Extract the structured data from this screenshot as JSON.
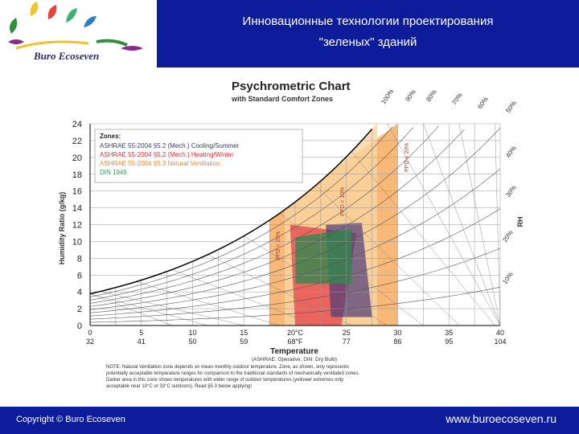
{
  "header": {
    "title_line1": "Инновационные технологии проектирования",
    "title_line2": "\"зеленых\" зданий",
    "logo_text": "Buro Ecoseven",
    "band_color": "#0d1c9a"
  },
  "footer": {
    "copyright": "Copyright © Buro Ecoseven",
    "website": "www.buroecoseven.ru"
  },
  "chart_data": {
    "type": "line",
    "title": "Psychrometric Chart",
    "subtitle": "with Standard Comfort Zones",
    "xlabel": "Temperature",
    "xlabel_note": "(ASHRAE: Operative, DIN: Dry Bulb)",
    "ylabel": "Humidity Ratio (g/kg)",
    "rh_label": "RH",
    "xlim": [
      0,
      40
    ],
    "ylim": [
      0,
      24
    ],
    "y_ticks": [
      0,
      2,
      4,
      6,
      8,
      10,
      12,
      14,
      16,
      18,
      20,
      22,
      24
    ],
    "x_ticks_c": [
      "0",
      "5",
      "10",
      "15",
      "20°C",
      "25",
      "30",
      "35",
      "40"
    ],
    "x_ticks_f": [
      "32",
      "41",
      "50",
      "59",
      "68°F",
      "77",
      "86",
      "95",
      "104"
    ],
    "x_tick_values": [
      0,
      5,
      10,
      15,
      20,
      25,
      30,
      35,
      40
    ],
    "rh_curves": [
      10,
      20,
      30,
      40,
      50,
      60,
      70,
      80,
      90,
      100
    ],
    "rh_labels": [
      "10%",
      "20%",
      "30%",
      "40%",
      "50%",
      "60%",
      "70%",
      "80%",
      "90%",
      "100%"
    ],
    "ppd_labels": [
      "PPD = 20%",
      "PPD = 10%",
      "PPD = 20%"
    ],
    "legend": {
      "heading": "Zones:",
      "position": "top-left",
      "entries": [
        {
          "label": "ASHRAE 55-2004 §5.2 (Mech.) Cooling/Summer",
          "color": "#3a3a6a"
        },
        {
          "label": "ASHRAE 55-2004 §5.2 (Mech.) Heating/Winter",
          "color": "#e0303a"
        },
        {
          "label": "ASHRAE 55-2004 §5.3 Natural Ventilation",
          "color": "#f08a30"
        },
        {
          "label": "DIN 1946",
          "color": "#2e9a5a"
        }
      ]
    },
    "zones": [
      {
        "name": "Natural Ventilation",
        "color": "#f5a04a",
        "polygon": [
          [
            17.5,
            0
          ],
          [
            30,
            0
          ],
          [
            30,
            24
          ],
          [
            17.5,
            13
          ]
        ]
      },
      {
        "name": "Natural Ventilation light",
        "color": "#fbd5a0",
        "polygon": [
          [
            19,
            0
          ],
          [
            28,
            0
          ],
          [
            28,
            24
          ],
          [
            19,
            14
          ]
        ]
      },
      {
        "name": "Heating/Winter",
        "color": "#e8404a",
        "polygon": [
          [
            20,
            0
          ],
          [
            24.5,
            0
          ],
          [
            26,
            11
          ],
          [
            19.5,
            12
          ]
        ]
      },
      {
        "name": "Cooling/Summer",
        "color": "#4a3a7a",
        "polygon": [
          [
            23.5,
            1
          ],
          [
            27.5,
            1
          ],
          [
            26.5,
            12.2
          ],
          [
            23,
            12
          ]
        ]
      },
      {
        "name": "DIN 1946",
        "color": "#2e8a4e",
        "polygon": [
          [
            20,
            5
          ],
          [
            25.5,
            5
          ],
          [
            25.5,
            11.5
          ],
          [
            20,
            10.5
          ]
        ]
      }
    ],
    "note_lines": [
      "NOTE: Natural Ventilation zone depends on mean monthly outdoor temperature. Zone, as shown, only represents",
      "potentially acceptable temperature ranges for comparison to the traditional standards of mechanically ventilated zones.",
      "Darker area in this zone shows temperatures with wider range of outdoor temperatures (yellower extremes only",
      "acceptable near 10°C or 33°C outdoors). Read §5.3 below applying!"
    ]
  }
}
